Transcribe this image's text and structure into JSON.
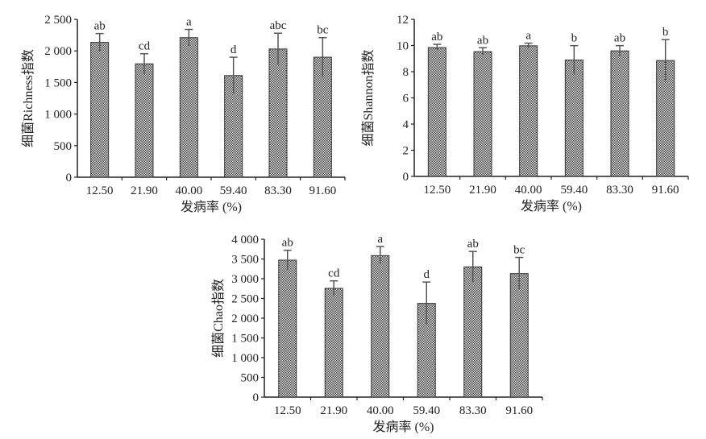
{
  "chart_data": [
    {
      "type": "bar",
      "ylabel": "细菌Richness指数",
      "xlabel": "发病率 (%)",
      "categories": [
        "12.50",
        "21.90",
        "40.00",
        "59.40",
        "83.30",
        "91.60"
      ],
      "values": [
        2135,
        1795,
        2210,
        1610,
        2030,
        1900
      ],
      "errors": [
        140,
        160,
        130,
        290,
        250,
        310
      ],
      "significance": [
        "ab",
        "cd",
        "a",
        "d",
        "abc",
        "bc"
      ],
      "ylim": [
        0,
        2500
      ],
      "yticks": [
        0,
        500,
        1000,
        1500,
        2000,
        2500
      ],
      "ytick_labels": [
        "0",
        "500",
        "1 000",
        "1 500",
        "2 000",
        "2 500"
      ]
    },
    {
      "type": "bar",
      "ylabel": "细菌Shannon指数",
      "xlabel": "发病率 (%)",
      "categories": [
        "12.50",
        "21.90",
        "40.00",
        "59.40",
        "83.30",
        "91.60"
      ],
      "values": [
        9.84,
        9.53,
        9.98,
        8.89,
        9.59,
        8.85
      ],
      "errors": [
        0.25,
        0.3,
        0.2,
        1.1,
        0.4,
        1.6
      ],
      "significance": [
        "ab",
        "ab",
        "a",
        "b",
        "ab",
        "b"
      ],
      "ylim": [
        0,
        12
      ],
      "yticks": [
        0,
        2,
        4,
        6,
        8,
        10,
        12
      ],
      "ytick_labels": [
        "0",
        "2",
        "4",
        "6",
        "8",
        "10",
        "12"
      ]
    },
    {
      "type": "bar",
      "ylabel": "细菌Chao指数",
      "xlabel": "发病率 (%)",
      "categories": [
        "12.50",
        "21.90",
        "40.00",
        "59.40",
        "83.30",
        "91.60"
      ],
      "values": [
        3470,
        2755,
        3585,
        2375,
        3300,
        3130
      ],
      "errors": [
        250,
        190,
        230,
        540,
        390,
        410
      ],
      "significance": [
        "ab",
        "cd",
        "a",
        "d",
        "ab",
        "bc"
      ],
      "ylim": [
        0,
        4000
      ],
      "yticks": [
        0,
        500,
        1000,
        1500,
        2000,
        2500,
        3000,
        3500,
        4000
      ],
      "ytick_labels": [
        "0",
        "500",
        "1 000",
        "1 500",
        "2 000",
        "2 500",
        "3 000",
        "3 500",
        "4 000"
      ]
    }
  ]
}
